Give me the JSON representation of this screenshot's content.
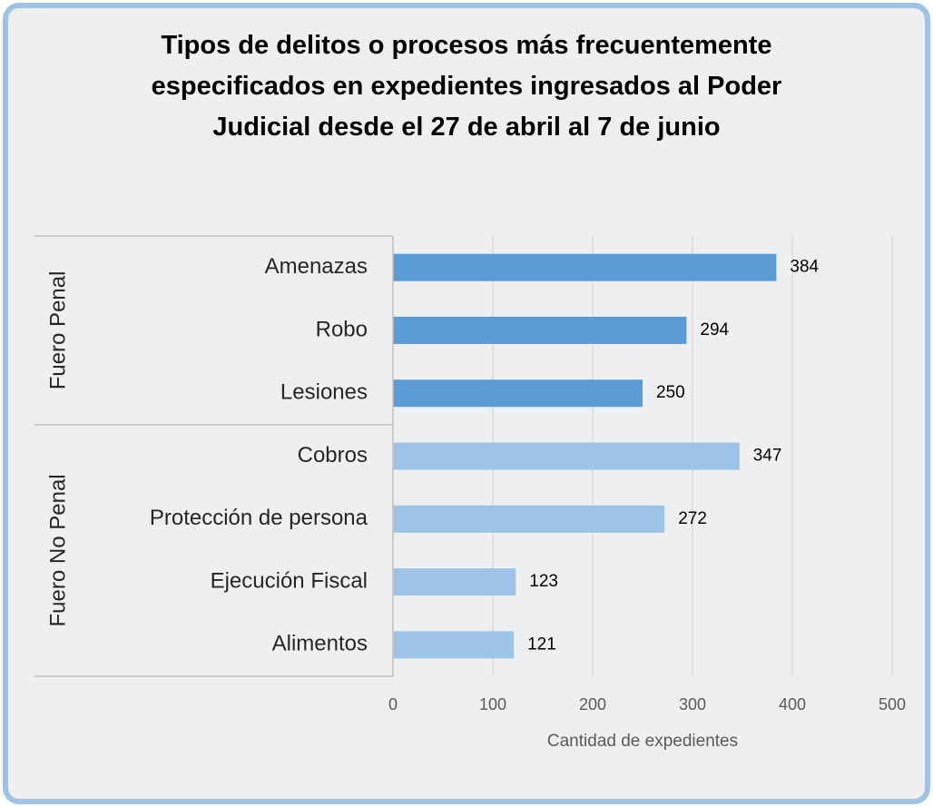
{
  "chart_data": {
    "type": "bar",
    "orientation": "horizontal",
    "title": "Tipos de delitos o procesos más frecuentemente especificados en expedientes ingresados al Poder Judicial desde el 27 de abril al 7 de junio",
    "groups": [
      {
        "name": "Fuero Penal",
        "color": "#5b9bd5",
        "categories": [
          "Amenazas",
          "Robo",
          "Lesiones"
        ],
        "values": [
          384,
          294,
          250
        ]
      },
      {
        "name": "Fuero No Penal",
        "color": "#9dc3e6",
        "categories": [
          "Cobros",
          "Protección de persona",
          "Ejecución Fiscal",
          "Alimentos"
        ],
        "values": [
          347,
          272,
          123,
          121
        ]
      }
    ],
    "xlabel": "Cantidad de expedientes",
    "xlim": [
      0,
      500
    ],
    "xticks": [
      0,
      100,
      200,
      300,
      400,
      500
    ],
    "grid": true
  }
}
